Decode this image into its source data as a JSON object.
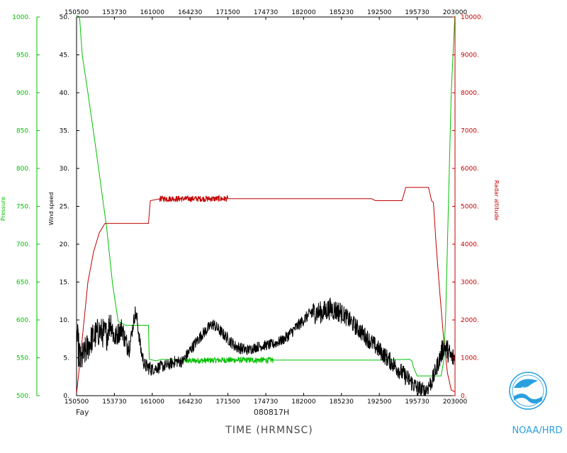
{
  "chart_data": {
    "type": "line",
    "title": "",
    "xlabel": "TIME (HRMNSC)",
    "x_ticks": [
      "150500",
      "153730",
      "161000",
      "164230",
      "171500",
      "174730",
      "182000",
      "185230",
      "192500",
      "195730",
      "203000"
    ],
    "xlim": [
      "150500",
      "203000"
    ],
    "storm_label": "Fay",
    "date_label": "080817H",
    "credit": "NOAA/HRD",
    "logo_text": "NOAA",
    "axes": {
      "pressure": {
        "label": "Pressure",
        "color": "#00c000",
        "ylim": [
          500,
          1000
        ],
        "ticks": [
          "500.",
          "550.",
          "600.",
          "650.",
          "700.",
          "750.",
          "800.",
          "850.",
          "900.",
          "950.",
          "1000."
        ]
      },
      "wind": {
        "label": "Wind speed",
        "color": "#000000",
        "ylim": [
          0,
          50
        ],
        "ticks": [
          "0.",
          "5.",
          "10.",
          "15.",
          "20.",
          "25.",
          "30.",
          "35.",
          "40.",
          "45.",
          "50."
        ]
      },
      "altitude": {
        "label": "Radar altitude",
        "color": "#c00000",
        "ylim": [
          0,
          10000
        ],
        "ticks": [
          "0.",
          "1000.",
          "2000.",
          "3000.",
          "4000.",
          "5000.",
          "6000.",
          "7000.",
          "8000.",
          "9000.",
          "10000."
        ]
      }
    },
    "series": [
      {
        "name": "Pressure",
        "axis": "pressure",
        "color": "#00c000",
        "x": [
          0.0,
          0.8,
          1.5,
          3.0,
          5.0,
          8.0,
          9.5,
          11.0,
          13.0,
          17.0,
          19.0,
          19.2,
          21.0,
          22.5,
          28.0,
          30.0,
          39.0,
          52.0,
          65.0,
          80.0,
          88.0,
          88.6,
          89.0,
          90.0,
          94.0,
          96.3,
          97.0,
          97.5,
          98.0,
          98.5,
          99.0,
          100.0
        ],
        "y": [
          1002,
          1000,
          950,
          900,
          830,
          720,
          648,
          598,
          593,
          593,
          593,
          548,
          546,
          548,
          547,
          546,
          547,
          547,
          547,
          547,
          548,
          546,
          538,
          526,
          526,
          526,
          546,
          600,
          700,
          800,
          900,
          1005
        ],
        "noise": [
          0,
          0,
          0,
          0,
          0,
          0,
          0,
          0,
          0,
          0,
          0,
          0,
          0,
          0,
          4,
          4,
          4,
          0,
          0,
          0,
          0,
          0,
          0,
          0,
          0,
          0,
          0,
          0,
          0,
          0,
          0,
          0
        ]
      },
      {
        "name": "Radar altitude",
        "axis": "altitude",
        "color": "#c00000",
        "x": [
          0.0,
          1.0,
          2.0,
          3.0,
          4.5,
          6.0,
          7.5,
          10.0,
          14.0,
          19.0,
          19.5,
          22.0,
          30.0,
          40.0,
          52.0,
          65.0,
          78.0,
          79.0,
          86.0,
          87.0,
          87.8,
          93.0,
          93.8,
          94.3,
          95.0,
          96.0,
          97.0,
          98.0,
          99.0,
          100.0
        ],
        "y": [
          50,
          1000,
          2000,
          3000,
          3800,
          4300,
          4550,
          4550,
          4550,
          4550,
          5150,
          5200,
          5200,
          5200,
          5200,
          5200,
          5200,
          5150,
          5150,
          5500,
          5500,
          5500,
          5150,
          5100,
          4000,
          2700,
          1500,
          600,
          150,
          100
        ],
        "noise": [
          0,
          0,
          0,
          0,
          0,
          0,
          0,
          0,
          0,
          0,
          0,
          80,
          80,
          0,
          0,
          0,
          0,
          0,
          0,
          0,
          0,
          0,
          0,
          0,
          0,
          0,
          0,
          0,
          0,
          0,
          0,
          0
        ]
      },
      {
        "name": "Wind speed",
        "axis": "wind",
        "color": "#000000",
        "x": [
          0.0,
          1.0,
          2.5,
          4.0,
          6.0,
          8.0,
          9.0,
          10.0,
          12.0,
          13.0,
          14.0,
          15.5,
          16.0,
          17.0,
          18.0,
          20.0,
          22.0,
          24.0,
          26.0,
          28.0,
          30.0,
          33.0,
          36.0,
          38.0,
          40.0,
          42.0,
          45.0,
          48.0,
          52.0,
          55.0,
          58.0,
          60.0,
          62.0,
          65.0,
          67.0,
          70.0,
          72.0,
          74.0,
          76.0,
          78.0,
          80.0,
          82.0,
          84.0,
          86.0,
          88.0,
          90.0,
          92.0,
          94.0,
          96.0,
          97.0,
          98.0,
          99.0,
          100.0
        ],
        "y": [
          8,
          4.5,
          6,
          7.5,
          8.5,
          8,
          10,
          7.5,
          9,
          7,
          6.5,
          11,
          10,
          6,
          4,
          3.5,
          3.8,
          4,
          4.5,
          4.5,
          6,
          8,
          9.5,
          8.5,
          7.5,
          6.5,
          6,
          6.5,
          6.8,
          7.5,
          9,
          10,
          11,
          11,
          11.5,
          11,
          10,
          9,
          8,
          7,
          6,
          5,
          4,
          3,
          2,
          1,
          0.5,
          2,
          5,
          6.5,
          6,
          5,
          5
        ],
        "noise": [
          2.5,
          2,
          2,
          2,
          2,
          2,
          2,
          1.5,
          1.5,
          1.5,
          1,
          1,
          1,
          1,
          1,
          0.8,
          0.8,
          0.8,
          0.8,
          0.8,
          0.8,
          0.8,
          0.8,
          0.8,
          0.8,
          0.8,
          0.7,
          0.7,
          0.7,
          0.8,
          0.8,
          0.8,
          1.5,
          1.5,
          1.5,
          1.2,
          1.2,
          1.2,
          1.2,
          1.2,
          1.2,
          1.2,
          1.2,
          1.2,
          1.2,
          1.2,
          1.2,
          1.2,
          1.5,
          1.5,
          1.5,
          1.5,
          1.5
        ]
      }
    ]
  }
}
